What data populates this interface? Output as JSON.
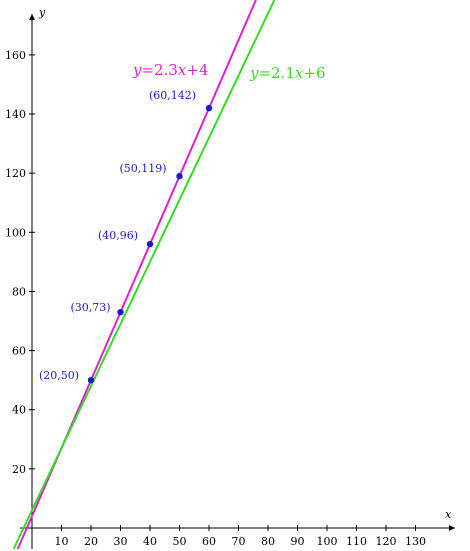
{
  "chart_data": {
    "type": "line",
    "xlabel": "x",
    "ylabel": "y",
    "xlim": [
      -4,
      135
    ],
    "ylim": [
      -4,
      175
    ],
    "xticks": [
      10,
      20,
      30,
      40,
      50,
      60,
      70,
      80,
      90,
      100,
      110,
      120,
      130
    ],
    "yticks": [
      20,
      40,
      60,
      80,
      100,
      120,
      140,
      160
    ],
    "grid": false,
    "series": [
      {
        "name": "y=2.3x+4",
        "slope": 2.3,
        "intercept": 4,
        "color": "#e020d0"
      },
      {
        "name": "y=2.1x+6",
        "slope": 2.1,
        "intercept": 6,
        "color": "#33dd22"
      }
    ],
    "points": [
      {
        "x": 20,
        "y": 50,
        "label": "(20,50)"
      },
      {
        "x": 30,
        "y": 73,
        "label": "(30,73)"
      },
      {
        "x": 40,
        "y": 96,
        "label": "(40,96)"
      },
      {
        "x": 50,
        "y": 119,
        "label": "(50,119)"
      },
      {
        "x": 60,
        "y": 142,
        "label": "(60,142)"
      }
    ],
    "point_color": "#1a1acc"
  }
}
